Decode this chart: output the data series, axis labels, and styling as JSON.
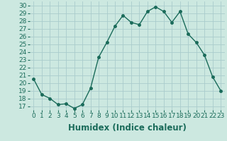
{
  "x": [
    0,
    1,
    2,
    3,
    4,
    5,
    6,
    7,
    8,
    9,
    10,
    11,
    12,
    13,
    14,
    15,
    16,
    17,
    18,
    19,
    20,
    21,
    22,
    23
  ],
  "y": [
    20.5,
    18.5,
    18.0,
    17.2,
    17.3,
    16.7,
    17.2,
    19.3,
    23.3,
    25.2,
    27.3,
    28.7,
    27.8,
    27.5,
    29.2,
    29.8,
    29.2,
    27.8,
    29.2,
    26.3,
    25.2,
    23.6,
    20.8,
    19.0
  ],
  "line_color": "#1a6b5a",
  "marker": "o",
  "marker_size": 2.5,
  "bg_color": "#cce8e0",
  "grid_color": "#aacccc",
  "xlabel": "Humidex (Indice chaleur)",
  "xlim": [
    -0.5,
    23.5
  ],
  "ylim": [
    16.5,
    30.5
  ],
  "yticks": [
    17,
    18,
    19,
    20,
    21,
    22,
    23,
    24,
    25,
    26,
    27,
    28,
    29,
    30
  ],
  "xticks": [
    0,
    1,
    2,
    3,
    4,
    5,
    6,
    7,
    8,
    9,
    10,
    11,
    12,
    13,
    14,
    15,
    16,
    17,
    18,
    19,
    20,
    21,
    22,
    23
  ],
  "tick_fontsize": 6.5,
  "xlabel_fontsize": 8.5,
  "xlabel_fontweight": "bold"
}
